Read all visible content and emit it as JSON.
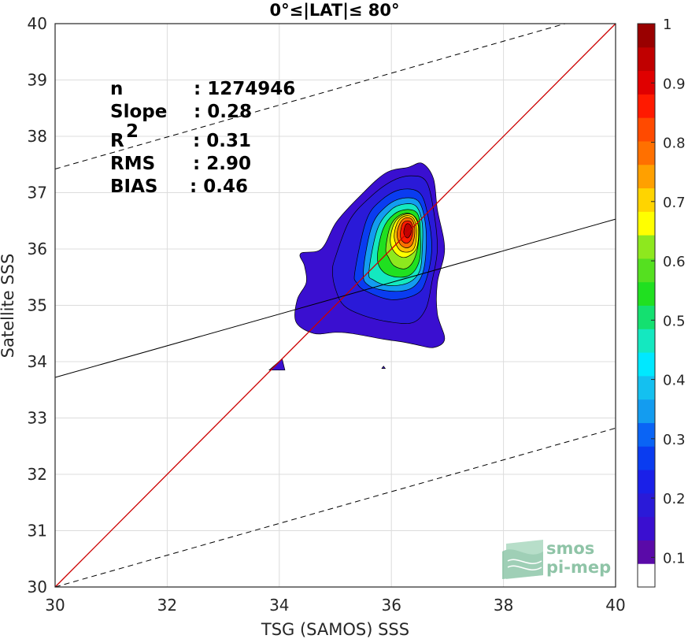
{
  "chart_data": {
    "type": "heatmap",
    "title": "0°≤|LAT|≤ 80°",
    "xlabel": "TSG (SAMOS) SSS",
    "ylabel": "Satellite SSS",
    "xlim": [
      30,
      40
    ],
    "ylim": [
      30,
      40
    ],
    "xticks": [
      "30",
      "32",
      "34",
      "36",
      "38",
      "40"
    ],
    "yticks": [
      "30",
      "31",
      "32",
      "33",
      "34",
      "35",
      "36",
      "37",
      "38",
      "39",
      "40"
    ],
    "grid": true,
    "stats": [
      {
        "label": "n",
        "value": ": 1274946"
      },
      {
        "label": "Slope",
        "value": ": 0.28"
      },
      {
        "label": "R",
        "sup": "2",
        "value": ": 0.31"
      },
      {
        "label": "RMS",
        "value": ": 2.90"
      },
      {
        "label": "BIAS",
        "value": ": 0.46"
      }
    ],
    "lines": {
      "identity": {
        "slope": 1,
        "intercept": 0,
        "color": "#cc0000",
        "style": "solid"
      },
      "regression": {
        "x": [
          30,
          40
        ],
        "y": [
          33.72,
          36.53
        ],
        "style": "solid"
      },
      "upper_bound": {
        "x": [
          30,
          39.1
        ],
        "y": [
          37.42,
          40.0
        ],
        "style": "dashed"
      },
      "lower_bound": {
        "x": [
          30,
          40
        ],
        "y": [
          30.0,
          32.82
        ],
        "style": "dashed"
      }
    },
    "density_peak": {
      "x": 36.3,
      "y": 36.35,
      "value": 1.0
    },
    "density_levels": [
      {
        "level": 0.05,
        "color": "#3a0fd0",
        "ring": [
          [
            34.38,
            35.92
          ],
          [
            34.75,
            36.0
          ],
          [
            35.02,
            36.48
          ],
          [
            35.45,
            36.95
          ],
          [
            35.9,
            37.35
          ],
          [
            36.3,
            37.45
          ],
          [
            36.55,
            37.52
          ],
          [
            36.75,
            37.25
          ],
          [
            36.82,
            36.7
          ],
          [
            36.95,
            36.0
          ],
          [
            36.82,
            35.4
          ],
          [
            36.82,
            34.85
          ],
          [
            36.95,
            34.4
          ],
          [
            36.75,
            34.25
          ],
          [
            36.45,
            34.3
          ],
          [
            36.2,
            34.35
          ],
          [
            35.85,
            34.4
          ],
          [
            35.3,
            34.5
          ],
          [
            35.0,
            34.52
          ],
          [
            34.62,
            34.5
          ],
          [
            34.3,
            34.7
          ],
          [
            34.32,
            35.1
          ],
          [
            34.48,
            35.4
          ],
          [
            34.45,
            35.7
          ]
        ]
      },
      {
        "level": 0.1,
        "color": "#2a1ad8",
        "ring": [
          [
            35.0,
            35.85
          ],
          [
            35.25,
            36.5
          ],
          [
            35.6,
            36.9
          ],
          [
            36.0,
            37.2
          ],
          [
            36.35,
            37.3
          ],
          [
            36.62,
            37.2
          ],
          [
            36.75,
            36.7
          ],
          [
            36.82,
            36.0
          ],
          [
            36.72,
            35.4
          ],
          [
            36.62,
            34.95
          ],
          [
            36.4,
            34.7
          ],
          [
            36.0,
            34.7
          ],
          [
            35.5,
            34.82
          ],
          [
            35.15,
            35.0
          ],
          [
            35.0,
            35.3
          ],
          [
            34.95,
            35.6
          ]
        ]
      },
      {
        "level": 0.2,
        "color": "#0a3cf0",
        "ring": [
          [
            35.35,
            35.6
          ],
          [
            35.55,
            36.5
          ],
          [
            35.8,
            36.85
          ],
          [
            36.15,
            37.05
          ],
          [
            36.5,
            37.0
          ],
          [
            36.65,
            36.6
          ],
          [
            36.72,
            36.0
          ],
          [
            36.62,
            35.45
          ],
          [
            36.45,
            35.2
          ],
          [
            36.0,
            35.1
          ],
          [
            35.55,
            35.25
          ],
          [
            35.38,
            35.4
          ]
        ]
      },
      {
        "level": 0.3,
        "color": "#139cf0",
        "ring": [
          [
            35.5,
            35.6
          ],
          [
            35.65,
            36.4
          ],
          [
            35.9,
            36.75
          ],
          [
            36.2,
            36.9
          ],
          [
            36.48,
            36.85
          ],
          [
            36.6,
            36.5
          ],
          [
            36.62,
            36.0
          ],
          [
            36.55,
            35.55
          ],
          [
            36.35,
            35.3
          ],
          [
            36.0,
            35.25
          ],
          [
            35.6,
            35.35
          ]
        ]
      },
      {
        "level": 0.4,
        "color": "#14e8c0",
        "ring": [
          [
            35.6,
            35.6
          ],
          [
            35.75,
            36.35
          ],
          [
            36.0,
            36.7
          ],
          [
            36.25,
            36.8
          ],
          [
            36.45,
            36.75
          ],
          [
            36.55,
            36.45
          ],
          [
            36.55,
            36.0
          ],
          [
            36.5,
            35.6
          ],
          [
            36.3,
            35.4
          ],
          [
            35.95,
            35.35
          ],
          [
            35.68,
            35.45
          ]
        ]
      },
      {
        "level": 0.5,
        "color": "#20e020",
        "ring": [
          [
            35.75,
            35.85
          ],
          [
            35.85,
            36.35
          ],
          [
            36.05,
            36.62
          ],
          [
            36.3,
            36.7
          ],
          [
            36.48,
            36.6
          ],
          [
            36.52,
            36.2
          ],
          [
            36.5,
            35.8
          ],
          [
            36.35,
            35.55
          ],
          [
            36.1,
            35.5
          ],
          [
            35.85,
            35.6
          ]
        ]
      },
      {
        "level": 0.6,
        "color": "#8ee81e",
        "ring": [
          [
            35.9,
            36.0
          ],
          [
            35.98,
            36.4
          ],
          [
            36.15,
            36.6
          ],
          [
            36.35,
            36.62
          ],
          [
            36.48,
            36.45
          ],
          [
            36.48,
            36.1
          ],
          [
            36.4,
            35.8
          ],
          [
            36.25,
            35.65
          ],
          [
            36.05,
            35.7
          ],
          [
            35.95,
            35.85
          ]
        ]
      },
      {
        "level": 0.7,
        "color": "#ffff00",
        "ring": [
          [
            35.98,
            36.15
          ],
          [
            36.05,
            36.45
          ],
          [
            36.2,
            36.6
          ],
          [
            36.38,
            36.6
          ],
          [
            36.48,
            36.4
          ],
          [
            36.46,
            36.05
          ],
          [
            36.35,
            35.9
          ],
          [
            36.2,
            35.85
          ],
          [
            36.05,
            35.95
          ]
        ]
      },
      {
        "level": 0.75,
        "color": "#ffc000",
        "ring": [
          [
            36.05,
            36.2
          ],
          [
            36.1,
            36.45
          ],
          [
            36.22,
            36.58
          ],
          [
            36.38,
            36.56
          ],
          [
            36.45,
            36.35
          ],
          [
            36.42,
            36.05
          ],
          [
            36.32,
            35.95
          ],
          [
            36.15,
            35.98
          ]
        ]
      },
      {
        "level": 0.8,
        "color": "#ff7000",
        "ring": [
          [
            36.1,
            36.25
          ],
          [
            36.15,
            36.45
          ],
          [
            36.25,
            36.55
          ],
          [
            36.37,
            36.52
          ],
          [
            36.42,
            36.33
          ],
          [
            36.38,
            36.1
          ],
          [
            36.28,
            36.02
          ],
          [
            36.16,
            36.08
          ]
        ]
      },
      {
        "level": 0.9,
        "color": "#ff1a00",
        "ring": [
          [
            36.16,
            36.28
          ],
          [
            36.2,
            36.45
          ],
          [
            36.28,
            36.5
          ],
          [
            36.36,
            36.46
          ],
          [
            36.38,
            36.3
          ],
          [
            36.34,
            36.15
          ],
          [
            36.26,
            36.1
          ],
          [
            36.18,
            36.16
          ]
        ]
      },
      {
        "level": 1.0,
        "color": "#c00000",
        "ring": [
          [
            36.22,
            36.3
          ],
          [
            36.25,
            36.42
          ],
          [
            36.3,
            36.45
          ],
          [
            36.35,
            36.4
          ],
          [
            36.35,
            36.28
          ],
          [
            36.3,
            36.2
          ],
          [
            36.25,
            36.22
          ]
        ]
      }
    ],
    "small_blobs": [
      {
        "color": "#3a0fd0",
        "ring": [
          [
            33.82,
            33.85
          ],
          [
            34.05,
            34.05
          ],
          [
            34.1,
            33.85
          ]
        ]
      },
      {
        "color": "#3a0fd0",
        "ring": [
          [
            35.83,
            33.88
          ],
          [
            35.86,
            33.92
          ],
          [
            35.89,
            33.88
          ]
        ]
      }
    ],
    "colorbar": {
      "min": 0.05,
      "max": 1,
      "ticks": [
        "0.1",
        "0.2",
        "0.3",
        "0.4",
        "0.5",
        "0.6",
        "0.7",
        "0.8",
        "0.9",
        "1"
      ],
      "colors": [
        "#ffffff",
        "#5a0aa8",
        "#3a0fd0",
        "#2a1ad8",
        "#1a20e8",
        "#0a3cf0",
        "#0a64f5",
        "#139cf0",
        "#14c0f0",
        "#00e8ff",
        "#14e8c0",
        "#14e070",
        "#20e020",
        "#55e020",
        "#8ee81e",
        "#ffff00",
        "#ffd400",
        "#ffa000",
        "#ff7000",
        "#ff4a00",
        "#ff1a00",
        "#e00000",
        "#c00000",
        "#990000"
      ]
    }
  },
  "logo": {
    "line1": "smos",
    "line2": "pi-mep"
  }
}
